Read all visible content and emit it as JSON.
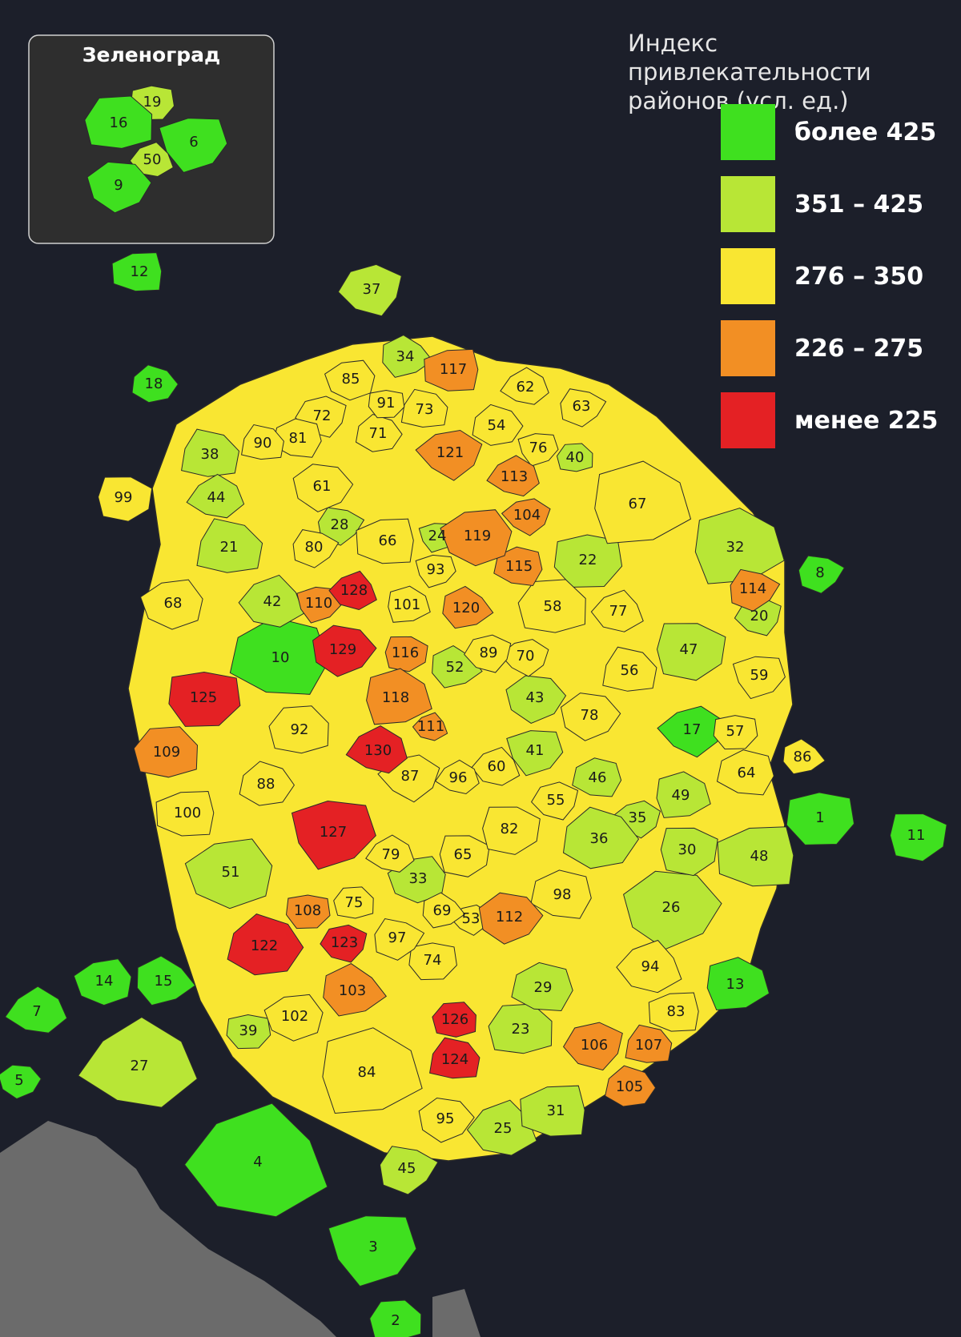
{
  "colors": {
    "background": "#1c1f2a",
    "gt425": "#3fe01f",
    "r351_425": "#b8e636",
    "r276_350": "#f9e632",
    "r226_275": "#f28f24",
    "lt225": "#e42124",
    "outside_region": "#6b6b6b",
    "inset_background": "#2e2e2e",
    "border": "#2a2a2a"
  },
  "legend": {
    "title_line1": "Индекс привлекательности",
    "title_line2": "районов (усл. ед.)",
    "items": [
      {
        "label": "более 425",
        "color_key": "gt425"
      },
      {
        "label": "351 – 425",
        "color_key": "r351_425"
      },
      {
        "label": "276 – 350",
        "color_key": "r276_350"
      },
      {
        "label": "226 – 275",
        "color_key": "r226_275"
      },
      {
        "label": "менее 225",
        "color_key": "lt225"
      }
    ]
  },
  "inset": {
    "title": "Зеленоград",
    "districts": [
      {
        "id": "19",
        "cls": "r351_425"
      },
      {
        "id": "16",
        "cls": "gt425"
      },
      {
        "id": "6",
        "cls": "gt425"
      },
      {
        "id": "50",
        "cls": "r351_425"
      },
      {
        "id": "9",
        "cls": "gt425"
      }
    ]
  },
  "districts": [
    {
      "id": "1",
      "cls": "gt425"
    },
    {
      "id": "2",
      "cls": "gt425"
    },
    {
      "id": "3",
      "cls": "gt425"
    },
    {
      "id": "4",
      "cls": "gt425"
    },
    {
      "id": "5",
      "cls": "gt425"
    },
    {
      "id": "7",
      "cls": "gt425"
    },
    {
      "id": "8",
      "cls": "gt425"
    },
    {
      "id": "10",
      "cls": "gt425"
    },
    {
      "id": "11",
      "cls": "gt425"
    },
    {
      "id": "12",
      "cls": "gt425"
    },
    {
      "id": "13",
      "cls": "gt425"
    },
    {
      "id": "14",
      "cls": "gt425"
    },
    {
      "id": "15",
      "cls": "gt425"
    },
    {
      "id": "17",
      "cls": "gt425"
    },
    {
      "id": "18",
      "cls": "gt425"
    },
    {
      "id": "20",
      "cls": "r351_425"
    },
    {
      "id": "21",
      "cls": "r351_425"
    },
    {
      "id": "22",
      "cls": "r351_425"
    },
    {
      "id": "23",
      "cls": "r351_425"
    },
    {
      "id": "24",
      "cls": "r351_425"
    },
    {
      "id": "25",
      "cls": "r351_425"
    },
    {
      "id": "26",
      "cls": "r351_425"
    },
    {
      "id": "27",
      "cls": "r351_425"
    },
    {
      "id": "28",
      "cls": "r351_425"
    },
    {
      "id": "29",
      "cls": "r351_425"
    },
    {
      "id": "30",
      "cls": "r351_425"
    },
    {
      "id": "31",
      "cls": "r351_425"
    },
    {
      "id": "32",
      "cls": "r351_425"
    },
    {
      "id": "33",
      "cls": "r351_425"
    },
    {
      "id": "34",
      "cls": "r351_425"
    },
    {
      "id": "35",
      "cls": "r351_425"
    },
    {
      "id": "36",
      "cls": "r351_425"
    },
    {
      "id": "37",
      "cls": "r351_425"
    },
    {
      "id": "38",
      "cls": "r351_425"
    },
    {
      "id": "39",
      "cls": "r351_425"
    },
    {
      "id": "40",
      "cls": "r351_425"
    },
    {
      "id": "41",
      "cls": "r351_425"
    },
    {
      "id": "42",
      "cls": "r351_425"
    },
    {
      "id": "43",
      "cls": "r351_425"
    },
    {
      "id": "44",
      "cls": "r351_425"
    },
    {
      "id": "45",
      "cls": "r351_425"
    },
    {
      "id": "46",
      "cls": "r351_425"
    },
    {
      "id": "47",
      "cls": "r351_425"
    },
    {
      "id": "48",
      "cls": "r351_425"
    },
    {
      "id": "49",
      "cls": "r351_425"
    },
    {
      "id": "51",
      "cls": "r351_425"
    },
    {
      "id": "52",
      "cls": "r351_425"
    },
    {
      "id": "53",
      "cls": "r276_350"
    },
    {
      "id": "54",
      "cls": "r276_350"
    },
    {
      "id": "55",
      "cls": "r276_350"
    },
    {
      "id": "56",
      "cls": "r276_350"
    },
    {
      "id": "57",
      "cls": "r276_350"
    },
    {
      "id": "58",
      "cls": "r276_350"
    },
    {
      "id": "59",
      "cls": "r276_350"
    },
    {
      "id": "60",
      "cls": "r276_350"
    },
    {
      "id": "61",
      "cls": "r276_350"
    },
    {
      "id": "62",
      "cls": "r276_350"
    },
    {
      "id": "63",
      "cls": "r276_350"
    },
    {
      "id": "64",
      "cls": "r276_350"
    },
    {
      "id": "65",
      "cls": "r276_350"
    },
    {
      "id": "66",
      "cls": "r276_350"
    },
    {
      "id": "67",
      "cls": "r276_350"
    },
    {
      "id": "68",
      "cls": "r276_350"
    },
    {
      "id": "69",
      "cls": "r276_350"
    },
    {
      "id": "70",
      "cls": "r276_350"
    },
    {
      "id": "71",
      "cls": "r276_350"
    },
    {
      "id": "72",
      "cls": "r276_350"
    },
    {
      "id": "73",
      "cls": "r276_350"
    },
    {
      "id": "74",
      "cls": "r276_350"
    },
    {
      "id": "75",
      "cls": "r276_350"
    },
    {
      "id": "76",
      "cls": "r276_350"
    },
    {
      "id": "77",
      "cls": "r276_350"
    },
    {
      "id": "78",
      "cls": "r276_350"
    },
    {
      "id": "79",
      "cls": "r276_350"
    },
    {
      "id": "80",
      "cls": "r276_350"
    },
    {
      "id": "81",
      "cls": "r276_350"
    },
    {
      "id": "82",
      "cls": "r276_350"
    },
    {
      "id": "83",
      "cls": "r276_350"
    },
    {
      "id": "84",
      "cls": "r276_350"
    },
    {
      "id": "85",
      "cls": "r276_350"
    },
    {
      "id": "86",
      "cls": "r276_350"
    },
    {
      "id": "87",
      "cls": "r276_350"
    },
    {
      "id": "88",
      "cls": "r276_350"
    },
    {
      "id": "89",
      "cls": "r276_350"
    },
    {
      "id": "90",
      "cls": "r276_350"
    },
    {
      "id": "91",
      "cls": "r276_350"
    },
    {
      "id": "92",
      "cls": "r276_350"
    },
    {
      "id": "93",
      "cls": "r276_350"
    },
    {
      "id": "94",
      "cls": "r276_350"
    },
    {
      "id": "95",
      "cls": "r276_350"
    },
    {
      "id": "96",
      "cls": "r276_350"
    },
    {
      "id": "97",
      "cls": "r276_350"
    },
    {
      "id": "98",
      "cls": "r276_350"
    },
    {
      "id": "99",
      "cls": "r276_350"
    },
    {
      "id": "100",
      "cls": "r276_350"
    },
    {
      "id": "101",
      "cls": "r276_350"
    },
    {
      "id": "102",
      "cls": "r276_350"
    },
    {
      "id": "103",
      "cls": "r226_275"
    },
    {
      "id": "104",
      "cls": "r226_275"
    },
    {
      "id": "105",
      "cls": "r226_275"
    },
    {
      "id": "106",
      "cls": "r226_275"
    },
    {
      "id": "107",
      "cls": "r226_275"
    },
    {
      "id": "108",
      "cls": "r226_275"
    },
    {
      "id": "109",
      "cls": "r226_275"
    },
    {
      "id": "110",
      "cls": "r226_275"
    },
    {
      "id": "111",
      "cls": "r226_275"
    },
    {
      "id": "112",
      "cls": "r226_275"
    },
    {
      "id": "113",
      "cls": "r226_275"
    },
    {
      "id": "114",
      "cls": "r226_275"
    },
    {
      "id": "115",
      "cls": "r226_275"
    },
    {
      "id": "116",
      "cls": "r226_275"
    },
    {
      "id": "117",
      "cls": "r226_275"
    },
    {
      "id": "118",
      "cls": "r226_275"
    },
    {
      "id": "119",
      "cls": "r226_275"
    },
    {
      "id": "120",
      "cls": "r226_275"
    },
    {
      "id": "121",
      "cls": "r226_275"
    },
    {
      "id": "122",
      "cls": "lt225"
    },
    {
      "id": "123",
      "cls": "lt225"
    },
    {
      "id": "124",
      "cls": "lt225"
    },
    {
      "id": "125",
      "cls": "lt225"
    },
    {
      "id": "126",
      "cls": "lt225"
    },
    {
      "id": "127",
      "cls": "lt225"
    },
    {
      "id": "128",
      "cls": "lt225"
    },
    {
      "id": "129",
      "cls": "lt225"
    },
    {
      "id": "130",
      "cls": "lt225"
    }
  ]
}
